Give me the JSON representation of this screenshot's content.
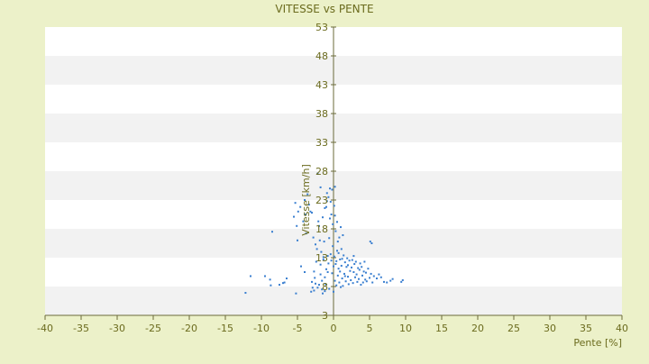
{
  "chart_data": {
    "type": "scatter",
    "title": "VITESSE vs PENTE",
    "xlabel": "Pente [%]",
    "ylabel": "Vitesse [km/h]",
    "xlim": [
      -40,
      40
    ],
    "ylim": [
      3,
      53
    ],
    "x_ticks": [
      -40,
      -35,
      -30,
      -25,
      -20,
      -15,
      -10,
      -5,
      0,
      5,
      10,
      15,
      20,
      25,
      30,
      35,
      40
    ],
    "y_ticks": [
      3,
      8,
      13,
      18,
      23,
      28,
      33,
      38,
      43,
      48,
      53
    ],
    "grid": "alternating horizontal bands",
    "legend": "none",
    "colors": {
      "background": "#ecf1c9",
      "band_light": "#ffffff",
      "band_dark": "#f2f2f2",
      "axis": "#6b6b3a",
      "text": "#6b6b1e",
      "point": "#3a7fd0"
    },
    "series": [
      {
        "points": [
          [
            -12.2,
            6.9
          ],
          [
            -11.5,
            9.8
          ],
          [
            -9.5,
            9.8
          ],
          [
            -8.8,
            9.2
          ],
          [
            -8.7,
            8.2
          ],
          [
            -8.5,
            17.5
          ],
          [
            -7.5,
            8.3
          ],
          [
            -7,
            8.6
          ],
          [
            -6.8,
            8.7
          ],
          [
            -6.5,
            9.4
          ],
          [
            -5.5,
            20.1
          ],
          [
            -5.3,
            22.5
          ],
          [
            -5.2,
            6.8
          ],
          [
            -5.1,
            18.5
          ],
          [
            -5,
            16
          ],
          [
            -4.9,
            21
          ],
          [
            -4.6,
            21.8
          ],
          [
            -4.5,
            11.5
          ],
          [
            -4.2,
            19.3
          ],
          [
            -4,
            10.5
          ],
          [
            -4,
            23
          ],
          [
            -3.9,
            20.5
          ],
          [
            -3.6,
            24
          ],
          [
            -3.4,
            22.2
          ],
          [
            -3.2,
            21
          ],
          [
            -3,
            20.8
          ],
          [
            -3,
            8.8
          ],
          [
            -2.9,
            7.8
          ],
          [
            -2.8,
            16.5
          ],
          [
            -2.7,
            7.3
          ],
          [
            -2.6,
            9.5
          ],
          [
            -2.5,
            8.5
          ],
          [
            -2.4,
            12.3
          ],
          [
            -2.3,
            14.5
          ],
          [
            -2.2,
            7.8
          ],
          [
            -2.2,
            27.6
          ],
          [
            -2.1,
            19.3
          ],
          [
            -2,
            18.5
          ],
          [
            -2,
            8.3
          ],
          [
            -1.9,
            16
          ],
          [
            -1.8,
            10.1
          ],
          [
            -1.8,
            11.8
          ],
          [
            -1.7,
            14
          ],
          [
            -1.6,
            7.5
          ],
          [
            -1.6,
            9
          ],
          [
            -1.5,
            20
          ],
          [
            -1.4,
            12.7
          ],
          [
            -1.4,
            13.1
          ],
          [
            -1.3,
            15.8
          ],
          [
            -1.2,
            7.2
          ],
          [
            -1.2,
            9.6
          ],
          [
            -1.1,
            8.4
          ],
          [
            -1,
            21.8
          ],
          [
            -1,
            11
          ],
          [
            -0.9,
            24.2
          ],
          [
            -0.9,
            22.8
          ],
          [
            -0.8,
            13.3
          ],
          [
            -0.8,
            10.5
          ],
          [
            -0.7,
            23.5
          ],
          [
            -0.7,
            12
          ],
          [
            -0.6,
            7.6
          ],
          [
            -0.6,
            16.4
          ],
          [
            -0.5,
            25
          ],
          [
            -0.5,
            19.8
          ],
          [
            -0.4,
            22.7
          ],
          [
            -0.4,
            13.6
          ],
          [
            -0.3,
            20.5
          ],
          [
            -0.3,
            12.5
          ],
          [
            -0.2,
            24.8
          ],
          [
            -0.2,
            10.3
          ],
          [
            -0.1,
            18.8
          ],
          [
            -0.1,
            15
          ],
          [
            0,
            7.1
          ],
          [
            0,
            11.5
          ],
          [
            0.1,
            22
          ],
          [
            0.1,
            13.2
          ],
          [
            0.2,
            9
          ],
          [
            0.2,
            20.3
          ],
          [
            0.3,
            11.9
          ],
          [
            0.3,
            17.6
          ],
          [
            0.4,
            12.4
          ],
          [
            0.4,
            8.2
          ],
          [
            0.5,
            14.2
          ],
          [
            0.5,
            19.2
          ],
          [
            0.6,
            9.9
          ],
          [
            0.6,
            15.8
          ],
          [
            0.7,
            11.1
          ],
          [
            0.7,
            13.8
          ],
          [
            0.8,
            8.7
          ],
          [
            0.8,
            16.5
          ],
          [
            0.9,
            12.7
          ],
          [
            0.9,
            10.6
          ],
          [
            1,
            7.9
          ],
          [
            1,
            18.3
          ],
          [
            1.1,
            14.5
          ],
          [
            1.1,
            11.6
          ],
          [
            1.2,
            9.4
          ],
          [
            1.2,
            12.8
          ],
          [
            1.3,
            8.1
          ],
          [
            1.4,
            13.4
          ],
          [
            1.5,
            10.2
          ],
          [
            1.6,
            12.2
          ],
          [
            1.7,
            8.9
          ],
          [
            1.8,
            11.4
          ],
          [
            1.9,
            12.9
          ],
          [
            2,
            9.7
          ],
          [
            2,
            11.7
          ],
          [
            2.1,
            8.4
          ],
          [
            2.2,
            12.5
          ],
          [
            2.3,
            10.7
          ],
          [
            2.4,
            9.1
          ],
          [
            2.5,
            11.3
          ],
          [
            2.6,
            12.6
          ],
          [
            2.7,
            8.6
          ],
          [
            2.8,
            10.5
          ],
          [
            2.9,
            11.9
          ],
          [
            3,
            9.6
          ],
          [
            3.1,
            12.3
          ],
          [
            3.2,
            10.1
          ],
          [
            3.3,
            8.8
          ],
          [
            3.4,
            11.2
          ],
          [
            3.5,
            9.3
          ],
          [
            3.6,
            10.9
          ],
          [
            3.7,
            12
          ],
          [
            3.8,
            8.3
          ],
          [
            3.9,
            11.4
          ],
          [
            4,
            9.9
          ],
          [
            4.1,
            8.7
          ],
          [
            4.2,
            10.6
          ],
          [
            4.3,
            12.3
          ],
          [
            4.4,
            9.2
          ],
          [
            4.5,
            10.4
          ],
          [
            4.6,
            8.9
          ],
          [
            4.8,
            11.1
          ],
          [
            5,
            9.5
          ],
          [
            5.1,
            15.8
          ],
          [
            5.2,
            10.2
          ],
          [
            5.3,
            15.5
          ],
          [
            5.4,
            8.7
          ],
          [
            5.6,
            9.8
          ],
          [
            6,
            9.4
          ],
          [
            6.3,
            10.1
          ],
          [
            6.6,
            9.6
          ],
          [
            7,
            8.8
          ],
          [
            7.4,
            8.7
          ],
          [
            7.9,
            9
          ],
          [
            8.2,
            9.3
          ],
          [
            9.4,
            8.8
          ],
          [
            9.6,
            9.1
          ],
          [
            -3.1,
            7.1
          ],
          [
            -2.7,
            10.6
          ],
          [
            -1.8,
            25.2
          ],
          [
            -1.2,
            21.6
          ],
          [
            0.2,
            25.3
          ],
          [
            1.3,
            16.9
          ],
          [
            -2.5,
            15.3
          ],
          [
            -3.8,
            17.2
          ],
          [
            2.8,
            13.3
          ],
          [
            1.6,
            9.8
          ],
          [
            -1.5,
            6.8
          ]
        ]
      }
    ]
  }
}
